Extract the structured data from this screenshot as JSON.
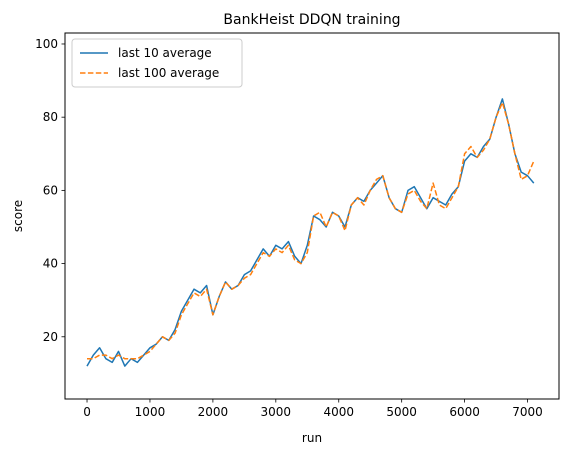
{
  "chart_data": {
    "type": "line",
    "title": "BankHeist DDQN training",
    "xlabel": "run",
    "ylabel": "score",
    "xlim": [
      -350,
      7500
    ],
    "ylim": [
      3,
      103
    ],
    "xticks": [
      0,
      1000,
      2000,
      3000,
      4000,
      5000,
      6000,
      7000
    ],
    "yticks": [
      20,
      40,
      60,
      80,
      100
    ],
    "grid": false,
    "legend_position": "top-left",
    "series": [
      {
        "name": "last 10 average",
        "color": "#1f77b4",
        "style": "solid",
        "x": [
          0,
          100,
          200,
          300,
          400,
          500,
          600,
          700,
          800,
          900,
          1000,
          1100,
          1200,
          1300,
          1400,
          1500,
          1600,
          1700,
          1800,
          1900,
          2000,
          2100,
          2200,
          2300,
          2400,
          2500,
          2600,
          2700,
          2800,
          2900,
          3000,
          3100,
          3200,
          3300,
          3400,
          3500,
          3600,
          3700,
          3800,
          3900,
          4000,
          4100,
          4200,
          4300,
          4400,
          4500,
          4600,
          4700,
          4800,
          4900,
          5000,
          5100,
          5200,
          5300,
          5400,
          5500,
          5600,
          5700,
          5800,
          5900,
          6000,
          6100,
          6200,
          6300,
          6400,
          6500,
          6600,
          6700,
          6800,
          6900,
          7000,
          7100
        ],
        "y": [
          12,
          15,
          17,
          14,
          13,
          16,
          12,
          14,
          13,
          15,
          17,
          18,
          20,
          19,
          22,
          27,
          30,
          33,
          32,
          34,
          26,
          31,
          35,
          33,
          34,
          37,
          38,
          41,
          44,
          42,
          45,
          44,
          46,
          42,
          40,
          45,
          53,
          52,
          50,
          54,
          53,
          50,
          56,
          58,
          57,
          60,
          62,
          64,
          58,
          55,
          54,
          60,
          61,
          58,
          55,
          58,
          57,
          56,
          59,
          61,
          68,
          70,
          69,
          72,
          74,
          80,
          85,
          78,
          70,
          65,
          64,
          62
        ]
      },
      {
        "name": "last 100 average",
        "color": "#ff7f0e",
        "style": "dashed",
        "x": [
          0,
          100,
          200,
          300,
          400,
          500,
          600,
          700,
          800,
          900,
          1000,
          1100,
          1200,
          1300,
          1400,
          1500,
          1600,
          1700,
          1800,
          1900,
          2000,
          2100,
          2200,
          2300,
          2400,
          2500,
          2600,
          2700,
          2800,
          2900,
          3000,
          3100,
          3200,
          3300,
          3400,
          3500,
          3600,
          3700,
          3800,
          3900,
          4000,
          4100,
          4200,
          4300,
          4400,
          4500,
          4600,
          4700,
          4800,
          4900,
          5000,
          5100,
          5200,
          5300,
          5400,
          5500,
          5600,
          5700,
          5800,
          5900,
          6000,
          6100,
          6200,
          6300,
          6400,
          6500,
          6600,
          6700,
          6800,
          6900,
          7000,
          7100
        ],
        "y": [
          14,
          14,
          15,
          15,
          14,
          15,
          14,
          14,
          14,
          15,
          16,
          18,
          20,
          19,
          21,
          26,
          29,
          32,
          31,
          33,
          26,
          31,
          35,
          33,
          34,
          36,
          37,
          40,
          43,
          42,
          44,
          43,
          45,
          41,
          40,
          43,
          53,
          54,
          50,
          54,
          53,
          49,
          56,
          58,
          56,
          60,
          63,
          64,
          58,
          55,
          54,
          59,
          60,
          57,
          55,
          62,
          56,
          55,
          58,
          61,
          70,
          72,
          69,
          71,
          74,
          80,
          84,
          78,
          70,
          63,
          64,
          68
        ]
      }
    ]
  }
}
